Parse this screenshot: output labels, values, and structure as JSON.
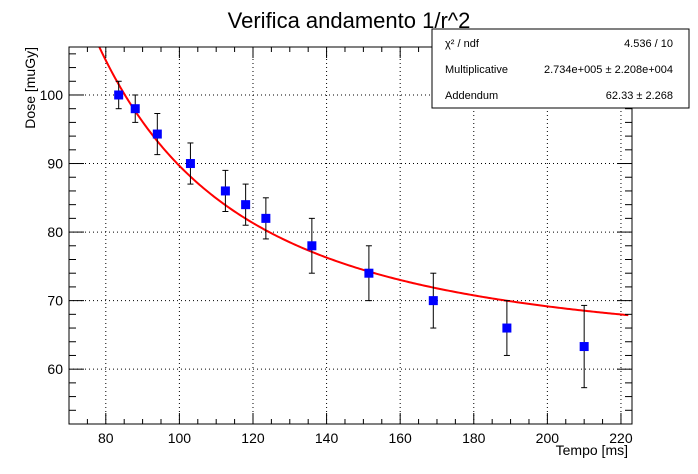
{
  "chart_data": {
    "type": "scatter",
    "title": "Verifica andamento 1/r^2",
    "xlabel": "Tempo [ms]",
    "ylabel": "Dose [muGy]",
    "xlim": [
      70,
      223
    ],
    "ylim": [
      52,
      107
    ],
    "xticks": [
      80,
      100,
      120,
      140,
      160,
      180,
      200,
      220
    ],
    "yticks": [
      60,
      70,
      80,
      90,
      100
    ],
    "grid": true,
    "series": [
      {
        "kind": "data-points-with-error-bars",
        "color": "#0000ff",
        "points": [
          {
            "x": 83.5,
            "y": 100.0,
            "err": 2.0
          },
          {
            "x": 88.0,
            "y": 98.0,
            "err": 2.0
          },
          {
            "x": 94.0,
            "y": 94.3,
            "err": 3.0
          },
          {
            "x": 103.0,
            "y": 90.0,
            "err": 3.0
          },
          {
            "x": 112.5,
            "y": 86.0,
            "err": 3.0
          },
          {
            "x": 118.0,
            "y": 84.0,
            "err": 3.0
          },
          {
            "x": 123.5,
            "y": 82.0,
            "err": 3.0
          },
          {
            "x": 136.0,
            "y": 78.0,
            "err": 4.0
          },
          {
            "x": 151.5,
            "y": 74.0,
            "err": 4.0
          },
          {
            "x": 169.0,
            "y": 70.0,
            "err": 4.0
          },
          {
            "x": 189.0,
            "y": 66.0,
            "err": 4.0
          },
          {
            "x": 210.0,
            "y": 63.3,
            "err": 6.0
          }
        ]
      },
      {
        "kind": "fit-curve",
        "color": "#ff0000",
        "formula": "A / x^2 + B",
        "A": 273400,
        "B": 62.33,
        "x_range": [
          77.0,
          222.0
        ]
      }
    ],
    "stats_box": {
      "rows": [
        {
          "label": "χ² / ndf",
          "value": "4.536 / 10"
        },
        {
          "label": "Multiplicative",
          "value": "2.734e+005 ± 2.208e+004"
        },
        {
          "label": "Addendum",
          "value": "62.33 ± 2.268"
        }
      ]
    }
  }
}
